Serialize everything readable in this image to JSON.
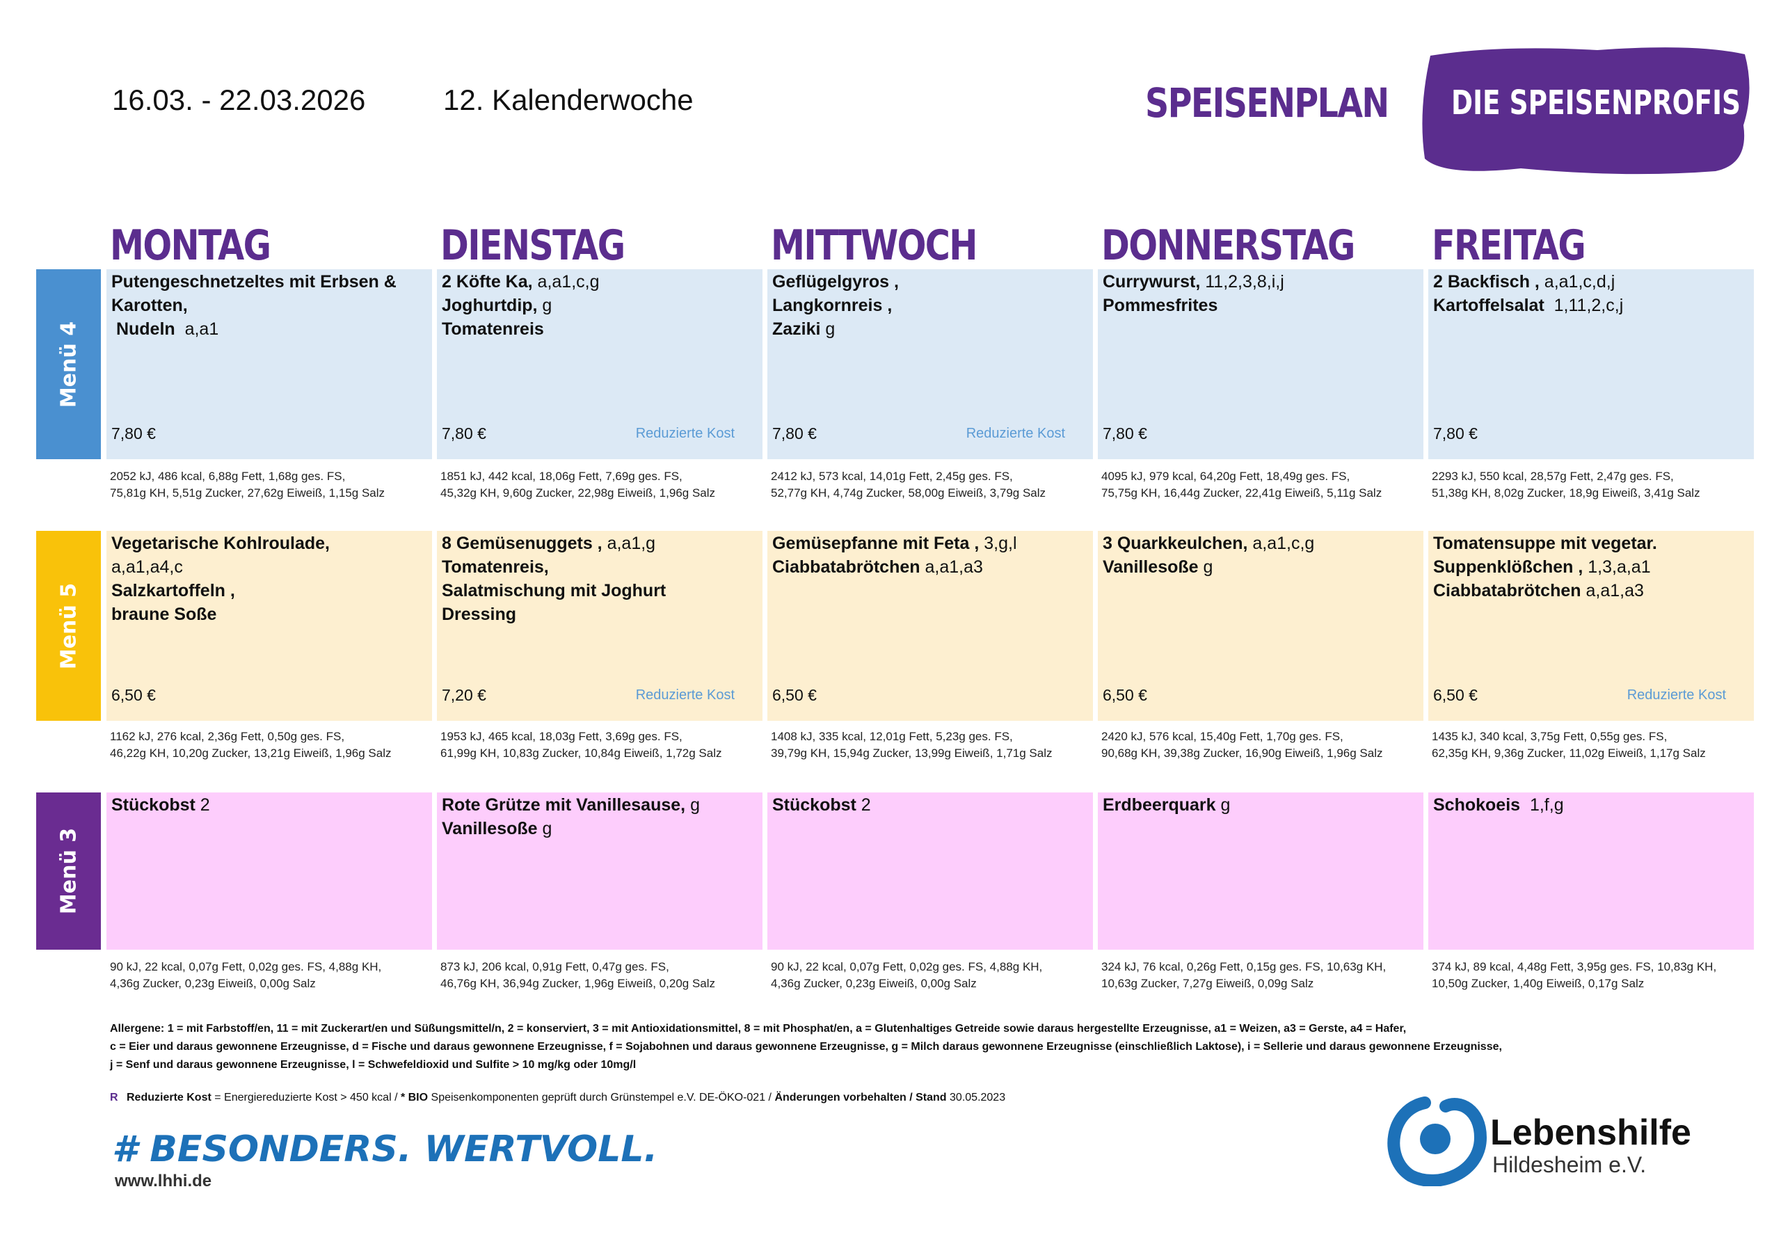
{
  "header": {
    "date_range": "16.03. - 22.03.2026",
    "week": "12. Kalenderwoche",
    "title": "SPEISENPLAN",
    "brand": "DIE SPEISENPROFIS"
  },
  "days": [
    "MONTAG",
    "DIENSTAG",
    "MITTWOCH",
    "DONNERSTAG",
    "FREITAG"
  ],
  "menus": [
    {
      "label": "Menü 4",
      "cells": [
        {
          "lines": [
            {
              "b": "Putengeschnetzeltes mit Erbsen &"
            },
            {
              "b": "Karotten,"
            },
            {
              "b": " Nudeln",
              "n": "  a,a1"
            }
          ],
          "price": "7,80 €",
          "nutrition": [
            "2052 kJ, 486 kcal, 6,88g Fett, 1,68g ges. FS,",
            "75,81g KH, 5,51g Zucker, 27,62g Eiweiß, 1,15g Salz"
          ]
        },
        {
          "lines": [
            {
              "b": "2 Köfte Ka,",
              "n": " a,a1,c,g"
            },
            {
              "b": "Joghurtdip,",
              "n": " g"
            },
            {
              "b": "Tomatenreis"
            }
          ],
          "price": "7,80 €",
          "tag": "Reduzierte Kost",
          "nutrition": [
            "1851 kJ, 442 kcal, 18,06g Fett, 7,69g ges. FS,",
            "45,32g KH, 9,60g Zucker, 22,98g Eiweiß, 1,96g Salz"
          ]
        },
        {
          "lines": [
            {
              "b": "Geflügelgyros ,"
            },
            {
              "b": "Langkornreis ,"
            },
            {
              "b": "Zaziki",
              "n": " g"
            }
          ],
          "price": "7,80 €",
          "tag": "Reduzierte Kost",
          "nutrition": [
            "2412 kJ, 573 kcal, 14,01g Fett, 2,45g ges. FS,",
            "52,77g KH, 4,74g Zucker, 58,00g Eiweiß, 3,79g Salz"
          ]
        },
        {
          "lines": [
            {
              "b": "Currywurst,",
              "n": " 11,2,3,8,i,j"
            },
            {
              "b": "Pommesfrites"
            }
          ],
          "price": "7,80 €",
          "nutrition": [
            "4095 kJ, 979 kcal, 64,20g Fett, 18,49g ges. FS,",
            "75,75g KH, 16,44g Zucker, 22,41g Eiweiß, 5,11g Salz"
          ]
        },
        {
          "lines": [
            {
              "b": "2 Backfisch ,",
              "n": " a,a1,c,d,j"
            },
            {
              "b": "Kartoffelsalat",
              "n": "  1,11,2,c,j"
            }
          ],
          "price": "7,80 €",
          "nutrition": [
            "2293 kJ, 550 kcal, 28,57g Fett, 2,47g ges. FS,",
            "51,38g KH, 8,02g Zucker, 18,9g Eiweiß, 3,41g Salz"
          ]
        }
      ]
    },
    {
      "label": "Menü 5",
      "cells": [
        {
          "lines": [
            {
              "b": "Vegetarische Kohlroulade,"
            },
            {
              "n": "a,a1,a4,c"
            },
            {
              "b": "Salzkartoffeln ,"
            },
            {
              "b": "braune Soße"
            }
          ],
          "price": "6,50 €",
          "nutrition": [
            "1162 kJ, 276 kcal, 2,36g Fett, 0,50g ges. FS,",
            "46,22g KH, 10,20g Zucker, 13,21g Eiweiß, 1,96g Salz"
          ]
        },
        {
          "lines": [
            {
              "b": "8 Gemüsenuggets ,",
              "n": " a,a1,g"
            },
            {
              "b": "Tomatenreis,"
            },
            {
              "b": "Salatmischung mit Joghurt"
            },
            {
              "b": "Dressing"
            }
          ],
          "price": "7,20 €",
          "tag": "Reduzierte Kost",
          "nutrition": [
            "1953 kJ, 465 kcal, 18,03g Fett, 3,69g ges. FS,",
            "61,99g KH, 10,83g Zucker, 10,84g Eiweiß, 1,72g Salz"
          ]
        },
        {
          "lines": [
            {
              "b": "Gemüsepfanne mit Feta ,",
              "n": " 3,g,l"
            },
            {
              "b": "Ciabbatabrötchen",
              "n": " a,a1,a3"
            }
          ],
          "price": "6,50 €",
          "nutrition": [
            "1408 kJ, 335 kcal, 12,01g Fett, 5,23g ges. FS,",
            "39,79g KH, 15,94g Zucker, 13,99g Eiweiß, 1,71g Salz"
          ]
        },
        {
          "lines": [
            {
              "b": "3 Quarkkeulchen,",
              "n": " a,a1,c,g"
            },
            {
              "b": "Vanillesoße",
              "n": " g"
            }
          ],
          "price": "6,50 €",
          "nutrition": [
            "2420 kJ, 576 kcal, 15,40g Fett, 1,70g ges. FS,",
            "90,68g KH, 39,38g Zucker, 16,90g Eiweiß, 1,96g Salz"
          ]
        },
        {
          "lines": [
            {
              "b": "Tomatensuppe mit vegetar."
            },
            {
              "b": "Suppenklößchen ,",
              "n": " 1,3,a,a1"
            },
            {
              "b": "Ciabbatabrötchen",
              "n": " a,a1,a3"
            }
          ],
          "price": "6,50 €",
          "tag": "Reduzierte Kost",
          "nutrition": [
            "1435 kJ, 340 kcal, 3,75g Fett, 0,55g ges. FS,",
            "62,35g KH, 9,36g Zucker, 11,02g Eiweiß, 1,17g Salz"
          ]
        }
      ]
    },
    {
      "label": "Menü 3",
      "cells": [
        {
          "lines": [
            {
              "b": "Stückobst",
              "n": " 2"
            }
          ],
          "nutrition": [
            "90 kJ, 22 kcal, 0,07g Fett, 0,02g ges. FS, 4,88g KH,",
            "4,36g Zucker, 0,23g Eiweiß, 0,00g Salz"
          ]
        },
        {
          "lines": [
            {
              "b": "Rote Grütze mit Vanillesause,",
              "n": " g"
            },
            {
              "b": "Vanillesoße",
              "n": " g"
            }
          ],
          "nutrition": [
            "873 kJ, 206 kcal, 0,91g Fett, 0,47g ges. FS,",
            "46,76g KH, 36,94g Zucker, 1,96g Eiweiß, 0,20g Salz"
          ]
        },
        {
          "lines": [
            {
              "b": "Stückobst",
              "n": " 2"
            }
          ],
          "nutrition": [
            "90 kJ, 22 kcal, 0,07g Fett, 0,02g ges. FS, 4,88g KH,",
            "4,36g Zucker, 0,23g Eiweiß, 0,00g Salz"
          ]
        },
        {
          "lines": [
            {
              "b": "Erdbeerquark",
              "n": " g"
            }
          ],
          "nutrition": [
            "324 kJ, 76 kcal, 0,26g Fett, 0,15g ges. FS, 10,63g KH,",
            "10,63g Zucker, 7,27g Eiweiß, 0,09g Salz"
          ]
        },
        {
          "lines": [
            {
              "b": "Schokoeis",
              "n": "  1,f,g"
            }
          ],
          "nutrition": [
            "374 kJ, 89 kcal, 4,48g Fett, 3,95g ges. FS, 10,83g KH,",
            "10,50g Zucker, 1,40g Eiweiß, 0,17g Salz"
          ]
        }
      ]
    }
  ],
  "footer": {
    "allergens": [
      "Allergene: 1 = mit Farbstoff/en, 11 = mit Zuckerart/en und Süßungsmittel/n, 2 = konserviert, 3 = mit Antioxidationsmittel, 8 = mit Phosphat/en, a = Glutenhaltiges Getreide sowie daraus hergestellte Erzeugnisse, a1 = Weizen, a3 = Gerste, a4 = Hafer,",
      "c = Eier und daraus gewonnene Erzeugnisse, d = Fische und daraus gewonnene Erzeugnisse, f = Sojabohnen und daraus gewonnene Erzeugnisse, g = Milch daraus gewonnene Erzeugnisse (einschließlich Laktose), i = Sellerie und daraus gewonnene Erzeugnisse,",
      "j = Senf und daraus gewonnene Erzeugnisse, l = Schwefeldioxid und Sulfite > 10 mg/kg oder 10mg/l"
    ],
    "note_marker": "R",
    "note": [
      {
        "b": "Reduzierte Kost"
      },
      {
        "n": " = Energiereduzierte Kost > 450 kcal / "
      },
      {
        "b": "* BIO"
      },
      {
        "n": " Speisenkomponenten geprüft durch Grünstempel e.V. DE-ÖKO-021 / "
      },
      {
        "b": "Änderungen vorbehalten / Stand"
      },
      {
        "n": " 30.05.2023"
      }
    ],
    "hashtag": "# BESONDERS. WERTVOLL.",
    "website": "www.lhhi.de",
    "logo_name": "Lebenshilfe",
    "logo_sub": "Hildesheim e.V."
  }
}
